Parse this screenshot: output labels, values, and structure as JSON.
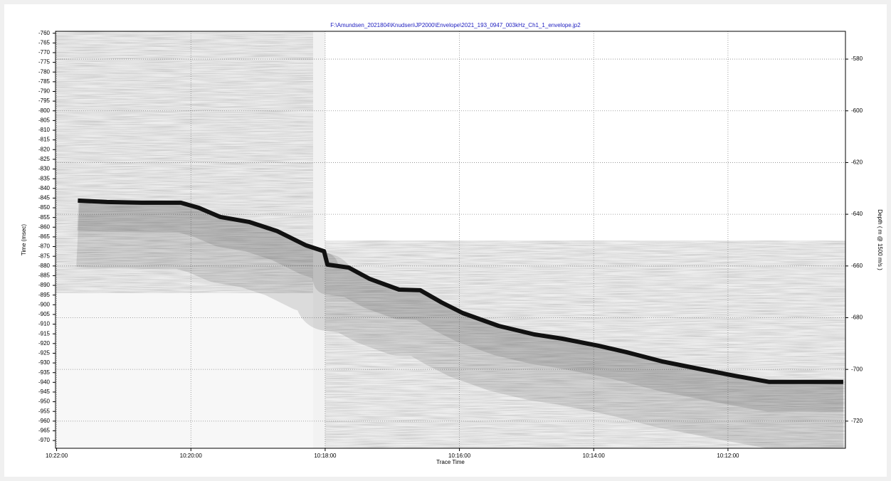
{
  "chart_data": {
    "type": "echogram",
    "title": "F:\\Amundsen_2021804\\Knudsen\\JP2000\\Envelope\\2021_193_0947_003kHz_Ch1_1_envelope.jp2",
    "xlabel": "Trace Time",
    "ylabel": "Time (msec)",
    "y2label": "Depth ( m @ 1500 m/s )",
    "xlim": [
      37321,
      36615
    ],
    "xticks": [
      {
        "value": 37320,
        "label": "10:22:00"
      },
      {
        "value": 37200,
        "label": "10:20:00"
      },
      {
        "value": 37080,
        "label": "10:18:00"
      },
      {
        "value": 36960,
        "label": "10:16:00"
      },
      {
        "value": 36840,
        "label": "10:14:00"
      },
      {
        "value": 36720,
        "label": "10:12:00"
      }
    ],
    "ylim": [
      -974,
      -759
    ],
    "yticks": [
      -760,
      -765,
      -770,
      -775,
      -780,
      -785,
      -790,
      -795,
      -800,
      -805,
      -810,
      -815,
      -820,
      -825,
      -830,
      -835,
      -840,
      -845,
      -850,
      -855,
      -860,
      -865,
      -870,
      -875,
      -880,
      -885,
      -890,
      -895,
      -900,
      -905,
      -910,
      -915,
      -920,
      -925,
      -930,
      -935,
      -940,
      -945,
      -950,
      -955,
      -960,
      -965,
      -970
    ],
    "y2lim": [
      -730.5,
      -569.25
    ],
    "y2ticks": [
      -580,
      -600,
      -620,
      -640,
      -660,
      -680,
      -700,
      -720
    ],
    "grid": true,
    "series": [
      {
        "color": "#111111",
        "x": [
          37301,
          37275,
          37244,
          37209,
          37193,
          37174,
          37148,
          37123,
          37097,
          37081,
          37078,
          37059,
          37040,
          37014,
          36995,
          36976,
          36957,
          36925,
          36893,
          36868,
          36836,
          36811,
          36779,
          36747,
          36715,
          36683,
          36658,
          36617
        ],
        "values": [
          -846.3,
          -847,
          -847.4,
          -847.4,
          -850,
          -854.7,
          -857.3,
          -862,
          -869.4,
          -872.4,
          -879.3,
          -880.8,
          -886.7,
          -892.2,
          -892.5,
          -898.8,
          -904.3,
          -910.9,
          -915.3,
          -917.5,
          -921.1,
          -924.4,
          -929.2,
          -932.9,
          -936.5,
          -939.8,
          -939.8,
          -939.8
        ]
      }
    ]
  }
}
